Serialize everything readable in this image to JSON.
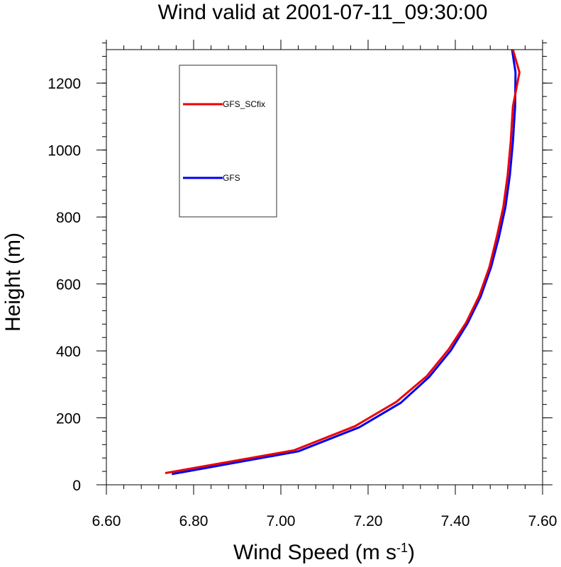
{
  "chart_data": {
    "type": "line",
    "title": "Wind valid at 2001-07-11_09:30:00",
    "xlabel": {
      "base": "Wind Speed (m s",
      "superscript": "-1",
      "tail": ")"
    },
    "ylabel": "Height (m)",
    "xlim": [
      6.6,
      7.6
    ],
    "ylim": [
      0,
      1300
    ],
    "xticks": [
      6.6,
      6.8,
      7.0,
      7.2,
      7.4,
      7.6
    ],
    "xtick_labels": [
      "6.60",
      "6.80",
      "7.00",
      "7.20",
      "7.40",
      "7.60"
    ],
    "yticks": [
      0,
      200,
      400,
      600,
      800,
      1000,
      1200
    ],
    "ytick_labels": [
      "0",
      "200",
      "400",
      "600",
      "800",
      "1000",
      "1200"
    ],
    "x_minor_step": 0.04,
    "y_minor_step": 40,
    "grid": false,
    "legend_position": "top-left",
    "series": [
      {
        "name": "GFS_SCfix",
        "color": "#ee0000",
        "points": [
          [
            6.735,
            35
          ],
          [
            7.03,
            103
          ],
          [
            7.17,
            175
          ],
          [
            7.265,
            248
          ],
          [
            7.335,
            325
          ],
          [
            7.385,
            405
          ],
          [
            7.425,
            485
          ],
          [
            7.455,
            565
          ],
          [
            7.478,
            650
          ],
          [
            7.495,
            740
          ],
          [
            7.51,
            830
          ],
          [
            7.52,
            925
          ],
          [
            7.527,
            1025
          ],
          [
            7.532,
            1130
          ],
          [
            7.547,
            1232
          ],
          [
            7.532,
            1300
          ]
        ]
      },
      {
        "name": "GFS",
        "color": "#0000ee",
        "points": [
          [
            6.75,
            32
          ],
          [
            7.04,
            100
          ],
          [
            7.18,
            172
          ],
          [
            7.275,
            245
          ],
          [
            7.34,
            322
          ],
          [
            7.39,
            402
          ],
          [
            7.428,
            482
          ],
          [
            7.458,
            562
          ],
          [
            7.482,
            650
          ],
          [
            7.5,
            740
          ],
          [
            7.515,
            830
          ],
          [
            7.525,
            925
          ],
          [
            7.532,
            1025
          ],
          [
            7.537,
            1130
          ],
          [
            7.538,
            1232
          ],
          [
            7.53,
            1300
          ]
        ]
      }
    ]
  }
}
